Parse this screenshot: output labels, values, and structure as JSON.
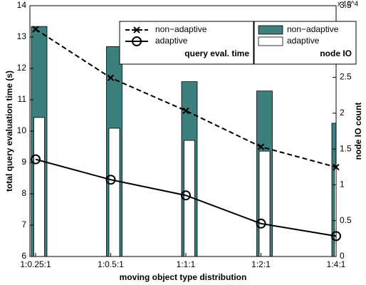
{
  "chart_data": {
    "type": "bar-line",
    "xlabel": "moving object type distribution",
    "ylabel": "total query evaluation time (s)",
    "y2label": "node IO count",
    "y2_multiplier": "x 10^4",
    "categories": [
      "1:0.25:1",
      "1:0.5:1",
      "1:1:1",
      "1:2:1",
      "1:4:1"
    ],
    "ylim": [
      6,
      14
    ],
    "yticks": [
      6,
      7,
      8,
      9,
      10,
      11,
      12,
      13,
      14
    ],
    "y2lim": [
      0,
      3.5
    ],
    "y2ticks": [
      0,
      0.5,
      1,
      1.5,
      2,
      2.5,
      3,
      3.5
    ],
    "line_legend_title": "query eval. time",
    "bar_legend_title": "node IO",
    "series": [
      {
        "name": "non−adaptive",
        "kind": "bar",
        "axis": "y2",
        "color": "#3d7f7d",
        "values": [
          3.21,
          2.93,
          2.44,
          2.31,
          1.86
        ]
      },
      {
        "name": "adaptive",
        "kind": "bar",
        "axis": "y2",
        "color": "#ffffff",
        "values": [
          1.94,
          1.79,
          1.62,
          1.47,
          1.27
        ]
      },
      {
        "name": "non−adaptive",
        "kind": "line",
        "dash": true,
        "marker": "x",
        "color": "#000000",
        "values": [
          13.25,
          11.7,
          10.65,
          9.5,
          8.85
        ]
      },
      {
        "name": "adaptive",
        "kind": "line",
        "dash": false,
        "marker": "o",
        "color": "#000000",
        "values": [
          9.1,
          8.45,
          7.95,
          7.05,
          6.65
        ]
      }
    ]
  }
}
